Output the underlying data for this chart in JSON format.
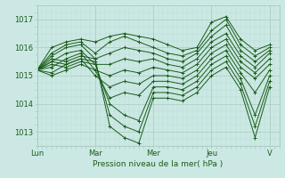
{
  "xlabel": "Pression niveau de la mer( hPa )",
  "bg_color": "#cce8e4",
  "plot_bg_color": "#cce8e4",
  "line_color": "#1a5c1a",
  "grid_color_major": "#a8ccc0",
  "grid_color_minor": "#b8dcd4",
  "ylim": [
    1012.5,
    1017.5
  ],
  "xlim": [
    0,
    100
  ],
  "yticks": [
    1013,
    1014,
    1015,
    1016,
    1017
  ],
  "xtick_labels": [
    "Lun",
    "Mar",
    "Mer",
    "Jeu",
    "V"
  ],
  "xtick_positions": [
    0,
    24,
    48,
    72,
    96
  ],
  "forecast_data": [
    [
      0,
      1015.2,
      6,
      1016.0,
      12,
      1016.2,
      18,
      1016.3,
      24,
      1016.2,
      30,
      1016.4,
      36,
      1016.5,
      42,
      1016.4,
      48,
      1016.3,
      54,
      1016.1,
      60,
      1015.9,
      66,
      1016.0,
      72,
      1016.9,
      78,
      1017.1,
      84,
      1016.3,
      90,
      1015.9,
      96,
      1016.1
    ],
    [
      0,
      1015.2,
      6,
      1015.8,
      12,
      1016.1,
      18,
      1016.2,
      24,
      1015.8,
      30,
      1016.2,
      36,
      1016.4,
      42,
      1016.2,
      48,
      1016.0,
      54,
      1015.8,
      60,
      1015.7,
      66,
      1015.9,
      72,
      1016.6,
      78,
      1017.0,
      84,
      1016.1,
      90,
      1015.7,
      96,
      1016.0
    ],
    [
      0,
      1015.2,
      6,
      1015.7,
      12,
      1016.0,
      18,
      1016.1,
      24,
      1015.6,
      30,
      1015.8,
      36,
      1016.0,
      42,
      1015.9,
      48,
      1015.8,
      54,
      1015.6,
      60,
      1015.5,
      66,
      1015.8,
      72,
      1016.4,
      78,
      1016.8,
      84,
      1015.9,
      90,
      1015.5,
      96,
      1015.9
    ],
    [
      0,
      1015.2,
      6,
      1015.5,
      12,
      1015.8,
      18,
      1015.9,
      24,
      1015.4,
      30,
      1015.4,
      36,
      1015.6,
      42,
      1015.5,
      48,
      1015.6,
      54,
      1015.4,
      60,
      1015.3,
      66,
      1015.6,
      72,
      1016.2,
      78,
      1016.5,
      84,
      1015.7,
      90,
      1015.3,
      96,
      1015.8
    ],
    [
      0,
      1015.2,
      6,
      1015.3,
      12,
      1015.6,
      18,
      1015.8,
      24,
      1015.2,
      30,
      1015.0,
      36,
      1015.2,
      42,
      1015.1,
      48,
      1015.3,
      54,
      1015.2,
      60,
      1015.1,
      66,
      1015.4,
      72,
      1016.0,
      78,
      1016.3,
      84,
      1015.5,
      90,
      1015.1,
      96,
      1015.6
    ],
    [
      0,
      1015.2,
      6,
      1015.1,
      12,
      1015.4,
      18,
      1015.6,
      24,
      1015.0,
      30,
      1014.6,
      36,
      1014.8,
      42,
      1014.7,
      48,
      1015.0,
      54,
      1015.0,
      60,
      1014.9,
      66,
      1015.2,
      72,
      1015.8,
      78,
      1016.1,
      84,
      1015.3,
      90,
      1014.9,
      96,
      1015.4
    ],
    [
      0,
      1015.2,
      6,
      1015.0,
      12,
      1015.2,
      18,
      1015.4,
      24,
      1015.2,
      30,
      1014.2,
      36,
      1014.4,
      42,
      1014.3,
      48,
      1014.8,
      54,
      1014.8,
      60,
      1014.7,
      66,
      1015.0,
      72,
      1015.6,
      78,
      1015.9,
      84,
      1015.1,
      90,
      1014.4,
      96,
      1015.2
    ],
    [
      0,
      1015.2,
      6,
      1015.4,
      12,
      1015.3,
      18,
      1015.5,
      24,
      1015.4,
      30,
      1014.0,
      36,
      1013.6,
      42,
      1013.4,
      48,
      1014.6,
      54,
      1014.6,
      60,
      1014.5,
      66,
      1014.8,
      72,
      1015.4,
      78,
      1015.7,
      84,
      1014.9,
      90,
      1013.6,
      96,
      1015.0
    ],
    [
      0,
      1015.2,
      6,
      1015.5,
      12,
      1015.4,
      18,
      1015.6,
      24,
      1015.5,
      30,
      1013.6,
      36,
      1013.2,
      42,
      1013.0,
      48,
      1014.4,
      54,
      1014.4,
      60,
      1014.3,
      66,
      1014.6,
      72,
      1015.2,
      78,
      1015.5,
      84,
      1014.7,
      90,
      1013.2,
      96,
      1014.8
    ],
    [
      0,
      1015.2,
      6,
      1015.6,
      12,
      1015.5,
      18,
      1015.7,
      24,
      1015.6,
      30,
      1013.2,
      36,
      1012.8,
      42,
      1012.6,
      48,
      1014.2,
      54,
      1014.2,
      60,
      1014.1,
      66,
      1014.4,
      72,
      1015.0,
      78,
      1015.3,
      84,
      1014.5,
      90,
      1012.8,
      96,
      1014.6
    ]
  ]
}
